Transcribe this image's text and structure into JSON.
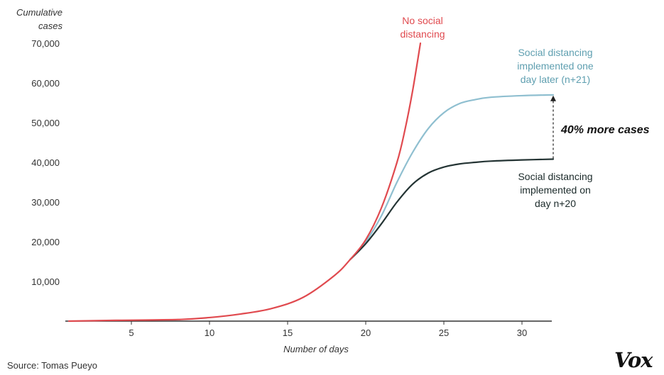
{
  "chart_data": {
    "type": "line",
    "title": "",
    "ylabel": "Cumulative cases",
    "xlabel": "Number of days",
    "xlim": [
      1,
      32
    ],
    "ylim": [
      0,
      70000
    ],
    "x_ticks": [
      5,
      10,
      15,
      20,
      25,
      30
    ],
    "y_ticks": [
      10000,
      20000,
      30000,
      40000,
      50000,
      60000,
      70000
    ],
    "y_tick_labels": [
      "10,000",
      "20,000",
      "30,000",
      "40,000",
      "50,000",
      "60,000",
      "70,000"
    ],
    "grid": false,
    "series": [
      {
        "name": "No social distancing",
        "color": "#e04a4f",
        "x": [
          1,
          4,
          8,
          10,
          12,
          14,
          16,
          18,
          19,
          20,
          21,
          22,
          22.5,
          23,
          23.5
        ],
        "y": [
          0,
          200,
          400,
          900,
          1800,
          3200,
          6000,
          11500,
          15500,
          20500,
          28500,
          40000,
          48000,
          58000,
          70000
        ]
      },
      {
        "name": "Social distancing implemented one day later (n+21)",
        "color": "#8fbfd0",
        "x": [
          19,
          20,
          21,
          22,
          23,
          24,
          25,
          26,
          27,
          28,
          30,
          32
        ],
        "y": [
          15500,
          20000,
          26500,
          35000,
          42500,
          48500,
          52500,
          54800,
          55800,
          56400,
          56800,
          57000
        ]
      },
      {
        "name": "Social distancing implemented on day n+20",
        "color": "#243434",
        "x": [
          19,
          20,
          21,
          22,
          23,
          24,
          25,
          26,
          27,
          28,
          30,
          32
        ],
        "y": [
          15500,
          19500,
          24500,
          30000,
          34500,
          37300,
          38800,
          39600,
          40000,
          40300,
          40600,
          40800
        ]
      }
    ],
    "annotations": {
      "no_distancing": "No social\ndistancing",
      "one_day_later": "Social distancing\nimplemented one\nday later (n+21)",
      "on_day_n20": "Social distancing\nimplemented on\nday n+20",
      "difference": "40% more cases"
    }
  },
  "source": "Source: Tomas Pueyo",
  "logo": "Vox"
}
